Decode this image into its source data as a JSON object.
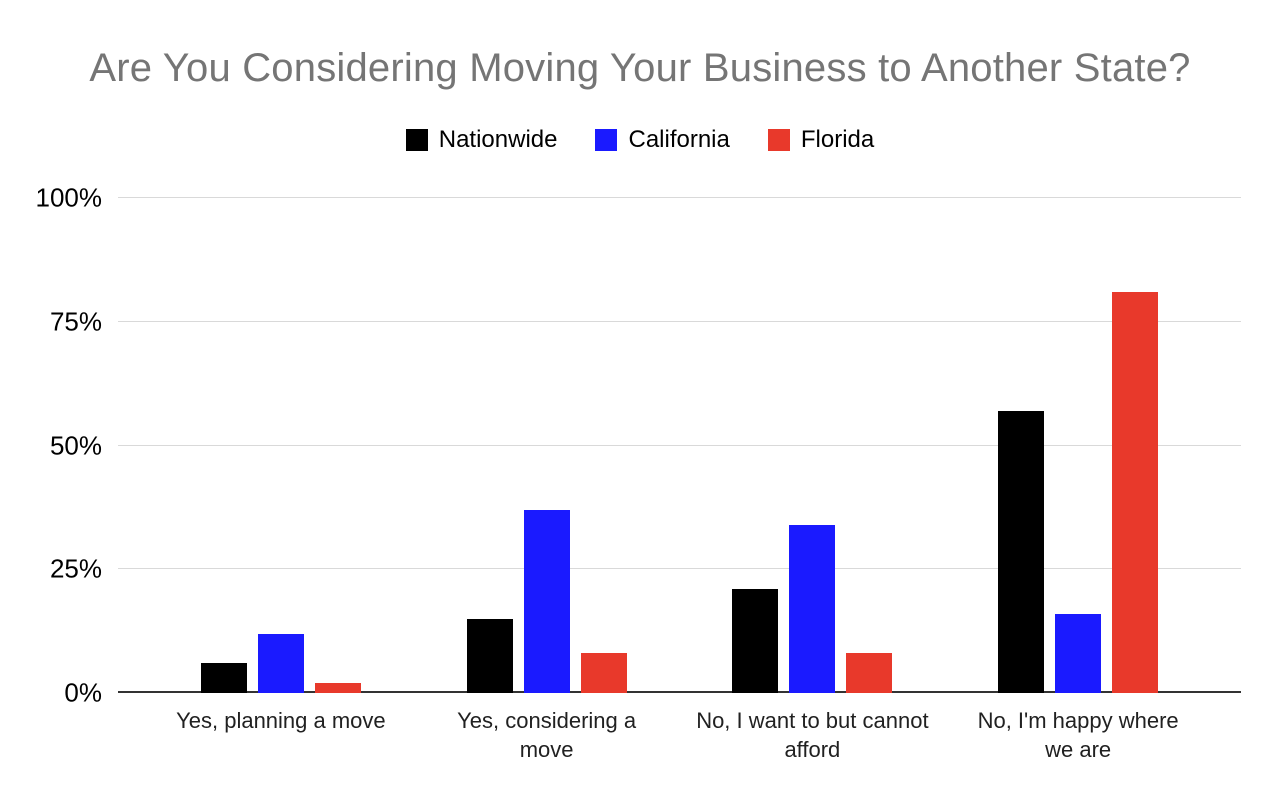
{
  "chart_data": {
    "type": "bar",
    "title": "Are You Considering Moving Your Business to Another State?",
    "title_color": "#757575",
    "xlabel": "",
    "ylabel": "",
    "ylim": [
      0,
      100
    ],
    "grid": true,
    "legend_position": "top",
    "categories": [
      "Yes, planning a move",
      "Yes, considering a move",
      "No, I want to but cannot afford",
      "No, I'm happy where we are"
    ],
    "series": [
      {
        "name": "Nationwide",
        "color": "#000000",
        "values": [
          6,
          15,
          21,
          57
        ]
      },
      {
        "name": "California",
        "color": "#1a1aff",
        "values": [
          12,
          37,
          34,
          16
        ]
      },
      {
        "name": "Florida",
        "color": "#e8392b",
        "values": [
          2,
          8,
          8,
          81
        ]
      }
    ],
    "yticks": [
      {
        "label": "0%",
        "value": 0
      },
      {
        "label": "25%",
        "value": 25
      },
      {
        "label": "50%",
        "value": 50
      },
      {
        "label": "75%",
        "value": 75
      },
      {
        "label": "100%",
        "value": 100
      }
    ]
  }
}
